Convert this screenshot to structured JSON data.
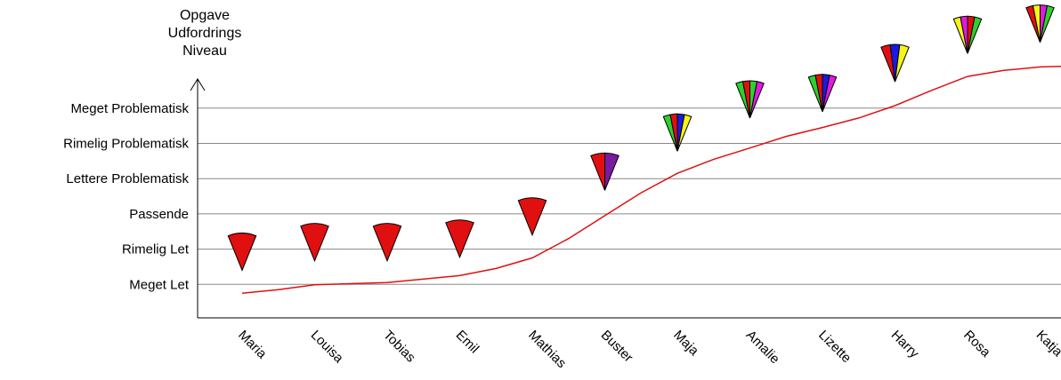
{
  "chart_data": {
    "type": "line",
    "y_axis_title": [
      "Opgave",
      "Udfordrings",
      "Niveau"
    ],
    "y_levels": [
      "Meget Let",
      "Rimelig Let",
      "Passende",
      "Lettere Problematisk",
      "Rimelig Problematisk",
      "Meget Problematisk"
    ],
    "categories": [
      "Maria",
      "Louisa",
      "Tobias",
      "Emil",
      "Mathias",
      "Buster",
      "Maja",
      "Amalie",
      "Lizette",
      "Harry",
      "Rosa",
      "Katja"
    ],
    "curve": {
      "color": "#e01010",
      "points": [
        {
          "x": 0.0,
          "y": 0.75
        },
        {
          "x": 0.5,
          "y": 0.85
        },
        {
          "x": 1.0,
          "y": 0.99
        },
        {
          "x": 2.0,
          "y": 1.05
        },
        {
          "x": 3.0,
          "y": 1.25
        },
        {
          "x": 3.5,
          "y": 1.45
        },
        {
          "x": 4.0,
          "y": 1.75
        },
        {
          "x": 4.5,
          "y": 2.3
        },
        {
          "x": 5.0,
          "y": 2.95
        },
        {
          "x": 5.5,
          "y": 3.6
        },
        {
          "x": 6.0,
          "y": 4.15
        },
        {
          "x": 6.5,
          "y": 4.55
        },
        {
          "x": 7.0,
          "y": 4.87
        },
        {
          "x": 7.5,
          "y": 5.2
        },
        {
          "x": 8.0,
          "y": 5.45
        },
        {
          "x": 8.5,
          "y": 5.72
        },
        {
          "x": 9.0,
          "y": 6.07
        },
        {
          "x": 9.5,
          "y": 6.5
        },
        {
          "x": 10.0,
          "y": 6.9
        },
        {
          "x": 10.5,
          "y": 7.07
        },
        {
          "x": 11.0,
          "y": 7.17
        },
        {
          "x": 11.5,
          "y": 7.2
        }
      ]
    },
    "markers": [
      {
        "name": "Maria",
        "y": 1.65,
        "colors": [
          "#e01010"
        ]
      },
      {
        "name": "Louisa",
        "y": 1.92,
        "colors": [
          "#e01010"
        ]
      },
      {
        "name": "Tobias",
        "y": 1.92,
        "colors": [
          "#e01010"
        ]
      },
      {
        "name": "Emil",
        "y": 2.02,
        "colors": [
          "#e01010"
        ]
      },
      {
        "name": "Mathias",
        "y": 2.65,
        "colors": [
          "#e01010"
        ]
      },
      {
        "name": "Buster",
        "y": 3.92,
        "colors": [
          "#e01010",
          "#7a1aa0"
        ]
      },
      {
        "name": "Maja",
        "y": 5.03,
        "colors": [
          "#2ed02e",
          "#e01010",
          "#1a1ae0",
          "#f5f51a"
        ]
      },
      {
        "name": "Amalie",
        "y": 5.97,
        "colors": [
          "#2ed02e",
          "#e01010",
          "#2ed02e",
          "#e01ae0"
        ]
      },
      {
        "name": "Lizette",
        "y": 6.15,
        "colors": [
          "#2ed02e",
          "#e01010",
          "#1a1ae0",
          "#e01ae0"
        ]
      },
      {
        "name": "Harry",
        "y": 7.0,
        "colors": [
          "#e01010",
          "#1a1ae0",
          "#f5f51a"
        ]
      },
      {
        "name": "Rosa",
        "y": 7.8,
        "colors": [
          "#f5f51a",
          "#e01ae0",
          "#e01010",
          "#2ed02e"
        ]
      },
      {
        "name": "Katja",
        "y": 8.12,
        "colors": [
          "#e01010",
          "#f5f51a",
          "#e01ae0",
          "#2ed02e"
        ]
      }
    ],
    "grid": true,
    "colors": {
      "gridline": "#888888",
      "axis": "#000000",
      "curve": "#e01010"
    }
  }
}
